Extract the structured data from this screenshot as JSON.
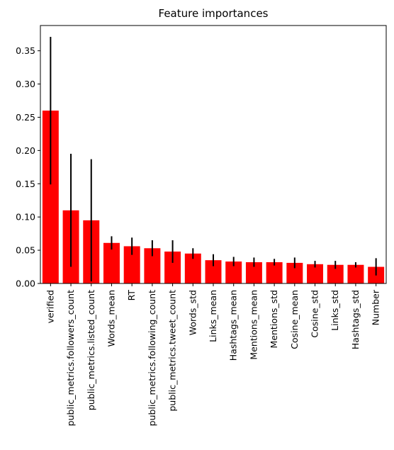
{
  "chart_data": {
    "type": "bar",
    "title": "Feature importances",
    "xlabel": "",
    "ylabel": "",
    "categories": [
      "verified",
      "public_metrics.followers_count",
      "public_metrics.listed_count",
      "Words_mean",
      "RT",
      "public_metrics.following_count",
      "public_metrics.tweet_count",
      "Words_std",
      "Links_mean",
      "Hashtags_mean",
      "Mentions_mean",
      "Mentions_std",
      "Cosine_mean",
      "Cosine_std",
      "Links_std",
      "Hashtags_std",
      "Number"
    ],
    "values": [
      0.26,
      0.11,
      0.095,
      0.061,
      0.056,
      0.053,
      0.048,
      0.045,
      0.035,
      0.033,
      0.032,
      0.032,
      0.031,
      0.029,
      0.028,
      0.028,
      0.025
    ],
    "errors": [
      0.111,
      0.085,
      0.092,
      0.01,
      0.013,
      0.012,
      0.017,
      0.008,
      0.009,
      0.007,
      0.007,
      0.005,
      0.008,
      0.005,
      0.006,
      0.004,
      0.013
    ],
    "ylim": [
      0,
      0.388
    ],
    "yticks": [
      0.0,
      0.05,
      0.1,
      0.15,
      0.2,
      0.25,
      0.3,
      0.35
    ],
    "ytick_labels": [
      "0.00",
      "0.05",
      "0.10",
      "0.15",
      "0.20",
      "0.25",
      "0.30",
      "0.35"
    ],
    "grid": false,
    "legend": "none",
    "colors": {
      "bar": "#ff0000",
      "error": "#000000",
      "axis": "#000000"
    }
  }
}
